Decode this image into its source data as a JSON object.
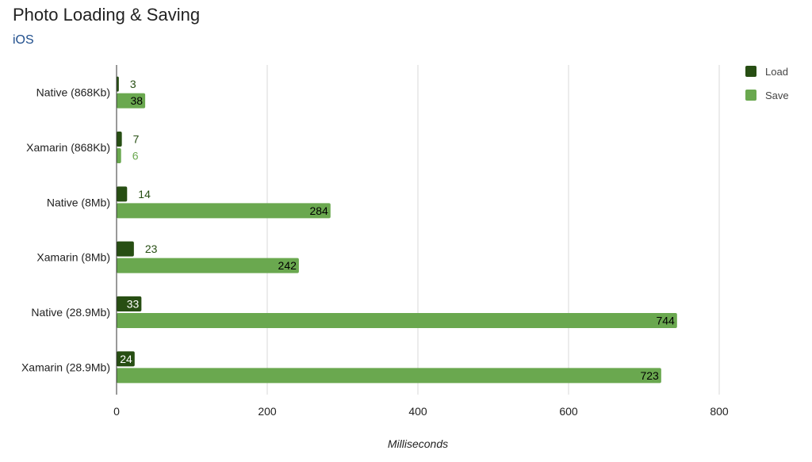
{
  "chart_data": {
    "type": "bar",
    "orientation": "horizontal",
    "title": "Photo Loading & Saving",
    "subtitle": "iOS",
    "xlabel": "Milliseconds",
    "ylabel": "",
    "categories": [
      "Native (868Kb)",
      "Xamarin (868Kb)",
      "Native (8Mb)",
      "Xamarin (8Mb)",
      "Native (28.9Mb)",
      "Xamarin (28.9Mb)"
    ],
    "series": [
      {
        "name": "Load",
        "color": "#274e13",
        "values": [
          3,
          7,
          14,
          23,
          33,
          24
        ]
      },
      {
        "name": "Save",
        "color": "#6aa84f",
        "values": [
          38,
          6,
          284,
          242,
          744,
          723
        ]
      }
    ],
    "xlim": [
      0,
      800
    ],
    "xticks": [
      0,
      200,
      400,
      600,
      800
    ],
    "grid": true,
    "legend_position": "right"
  }
}
